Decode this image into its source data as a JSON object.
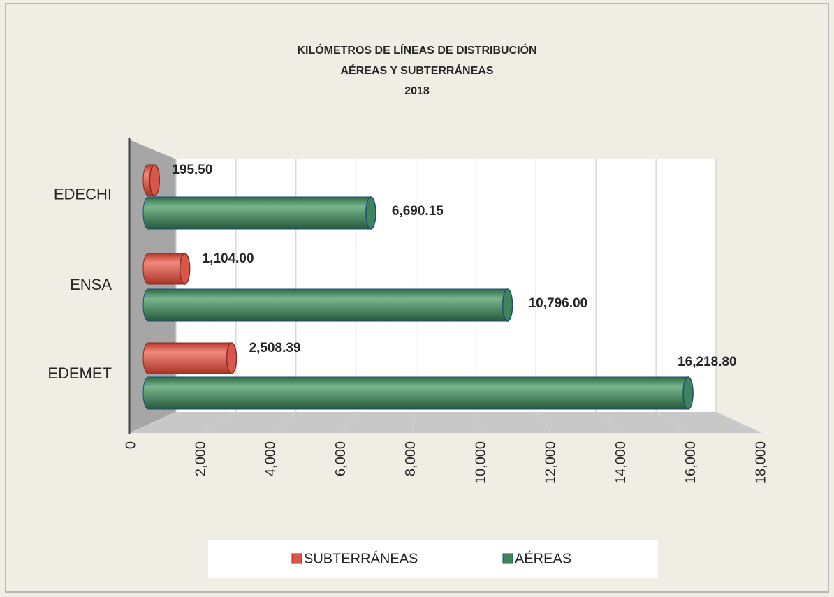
{
  "chart_data": {
    "type": "bar",
    "orientation": "horizontal",
    "title": [
      "KILÓMETROS DE LÍNEAS DE DISTRIBUCIÓN",
      "AÉREAS Y SUBTERRÁNEAS",
      "2018"
    ],
    "categories": [
      "EDECHI",
      "ENSA",
      "EDEMET"
    ],
    "series": [
      {
        "name": "SUBTERRÁNEAS",
        "color": "#d9574a",
        "values": [
          195.5,
          1104.0,
          2508.39
        ],
        "value_labels": [
          "195.50",
          "1,104.00",
          "2,508.39"
        ]
      },
      {
        "name": "AÉREAS",
        "color": "#3f855b",
        "values": [
          6690.15,
          10796.0,
          16218.8
        ],
        "value_labels": [
          "6,690.15",
          "10,796.00",
          "16,218.80"
        ]
      }
    ],
    "xlim": [
      0,
      18000
    ],
    "xticks": [
      0,
      {
        "value": 2000,
        "label": "2,000"
      },
      {
        "value": 4000,
        "label": "4,000"
      },
      {
        "value": 6000,
        "label": "6,000"
      },
      {
        "value": 8000,
        "label": "8,000"
      },
      {
        "value": 10000,
        "label": "10,000"
      },
      {
        "value": 12000,
        "label": "12,000"
      },
      {
        "value": 14000,
        "label": "14,000"
      },
      {
        "value": 16000,
        "label": "16,000"
      },
      {
        "value": 18000,
        "label": "18,000"
      }
    ],
    "grid": true,
    "legend": "bottom"
  }
}
